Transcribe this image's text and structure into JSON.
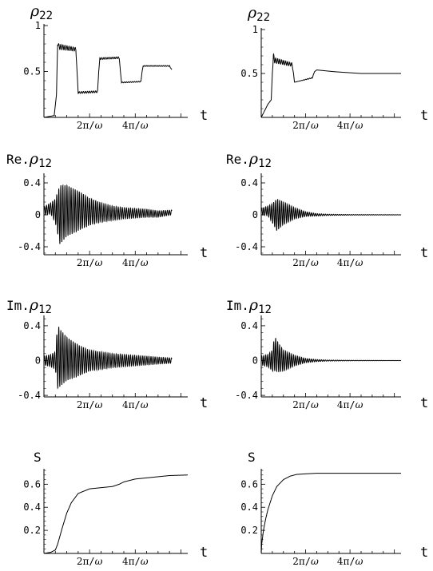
{
  "chart_data": [
    {
      "type": "line",
      "ylabel": "ρ22",
      "xlabel": "t",
      "x_tick_labels": [
        "2π/ω",
        "4π/ω"
      ],
      "x_ticks": [
        2,
        4
      ],
      "xlim": [
        0,
        6.3
      ],
      "y_tick_labels": [
        "1",
        "0.5"
      ],
      "y_ticks": [
        1,
        0.5
      ],
      "ylim": [
        0,
        1
      ],
      "series": [
        {
          "x": [
            0,
            0.45,
            0.55,
            0.6,
            0.65,
            1.4,
            1.45,
            1.5,
            2.35,
            2.4,
            2.45,
            3.3,
            3.35,
            3.4,
            4.25,
            4.3,
            4.35,
            5.5,
            5.6
          ],
          "y": [
            0,
            0.02,
            0.25,
            0.82,
            0.77,
            0.74,
            0.5,
            0.27,
            0.28,
            0.5,
            0.64,
            0.65,
            0.5,
            0.38,
            0.39,
            0.5,
            0.56,
            0.56,
            0.52
          ],
          "osc_amp": [
            0,
            0,
            0,
            0.03,
            0.03,
            0.02,
            0,
            0.01,
            0.01,
            0,
            0.01,
            0.01,
            0,
            0.005,
            0.005,
            0,
            0.005,
            0.005,
            0
          ]
        }
      ]
    },
    {
      "type": "line",
      "ylabel": "ρ22",
      "xlabel": "t",
      "x_tick_labels": [
        "2π/ω",
        "4π/ω"
      ],
      "x_ticks": [
        2,
        4
      ],
      "xlim": [
        0,
        6.3
      ],
      "y_tick_labels": [
        "1",
        "0.5"
      ],
      "y_ticks": [
        1,
        0.5
      ],
      "ylim": [
        0,
        1
      ],
      "series": [
        {
          "x": [
            0,
            0.3,
            0.45,
            0.5,
            0.55,
            0.6,
            1.4,
            1.5,
            2.3,
            2.4,
            2.5,
            3.3,
            4.5,
            6.3
          ],
          "y": [
            0,
            0.15,
            0.2,
            0.5,
            0.7,
            0.65,
            0.6,
            0.4,
            0.45,
            0.52,
            0.54,
            0.52,
            0.5,
            0.5
          ],
          "osc_amp": [
            0,
            0,
            0,
            0,
            0.03,
            0.03,
            0.02,
            0,
            0.005,
            0,
            0,
            0,
            0,
            0
          ]
        }
      ]
    },
    {
      "type": "line",
      "ylabel": "Re.ρ12",
      "xlabel": "t",
      "x_tick_labels": [
        "2π/ω",
        "4π/ω"
      ],
      "x_ticks": [
        2,
        4
      ],
      "xlim": [
        0,
        6.3
      ],
      "y_tick_labels": [
        "0.4",
        "0",
        "-0.4"
      ],
      "y_ticks": [
        0.4,
        0,
        -0.4
      ],
      "ylim": [
        -0.5,
        0.5
      ],
      "series": [
        {
          "x": [
            0,
            0.3,
            0.5,
            0.7,
            1.0,
            1.5,
            2.0,
            2.5,
            3.0,
            3.5,
            4.0,
            4.5,
            5.0,
            5.6
          ],
          "y": [
            0.05,
            0.08,
            0.05,
            0.0,
            0.05,
            0.05,
            0.04,
            0.03,
            0.02,
            0.02,
            0.02,
            0.02,
            0.01,
            0.03
          ],
          "osc_amp": [
            0.05,
            0.07,
            0.15,
            0.37,
            0.32,
            0.25,
            0.17,
            0.12,
            0.09,
            0.07,
            0.06,
            0.05,
            0.04,
            0.03
          ]
        }
      ]
    },
    {
      "type": "line",
      "ylabel": "Re.ρ12",
      "xlabel": "t",
      "x_tick_labels": [
        "2π/ω",
        "4π/ω"
      ],
      "x_ticks": [
        2,
        4
      ],
      "xlim": [
        0,
        6.3
      ],
      "y_tick_labels": [
        "0.4",
        "0",
        "-0.4"
      ],
      "y_ticks": [
        0.4,
        0,
        -0.4
      ],
      "ylim": [
        -0.5,
        0.5
      ],
      "series": [
        {
          "x": [
            0,
            0.3,
            0.5,
            0.7,
            1.0,
            1.5,
            2.0,
            2.5,
            3.0,
            4.0,
            6.3
          ],
          "y": [
            0.04,
            0.05,
            0.02,
            0.0,
            0.02,
            0.02,
            0.01,
            0.0,
            0.0,
            0.0,
            0.0
          ],
          "osc_amp": [
            0.04,
            0.06,
            0.12,
            0.2,
            0.14,
            0.07,
            0.03,
            0.015,
            0.008,
            0.004,
            0.002
          ]
        }
      ]
    },
    {
      "type": "line",
      "ylabel": "Im.ρ12",
      "xlabel": "t",
      "x_tick_labels": [
        "2π/ω",
        "4π/ω"
      ],
      "x_ticks": [
        2,
        4
      ],
      "xlim": [
        0,
        6.3
      ],
      "y_tick_labels": [
        "0.4",
        "0",
        "-0.4"
      ],
      "y_ticks": [
        0.4,
        0,
        -0.4
      ],
      "ylim": [
        -0.5,
        0.5
      ],
      "series": [
        {
          "x": [
            0,
            0.3,
            0.5,
            0.6,
            0.7,
            1.0,
            1.5,
            2.0,
            2.5,
            3.0,
            3.5,
            4.0,
            4.5,
            5.0,
            5.6
          ],
          "y": [
            0.0,
            0.0,
            0.0,
            0.05,
            0.03,
            0.02,
            0.0,
            0.0,
            0.0,
            0.0,
            0.0,
            0.0,
            0.0,
            0.0,
            0.0
          ],
          "osc_amp": [
            0.05,
            0.07,
            0.1,
            0.37,
            0.33,
            0.25,
            0.18,
            0.12,
            0.1,
            0.08,
            0.07,
            0.06,
            0.05,
            0.04,
            0.03
          ]
        }
      ]
    },
    {
      "type": "line",
      "ylabel": "Im.ρ12",
      "xlabel": "t",
      "x_tick_labels": [
        "2π/ω",
        "4π/ω"
      ],
      "x_ticks": [
        2,
        4
      ],
      "xlim": [
        0,
        6.3
      ],
      "y_tick_labels": [
        "0.4",
        "0",
        "-0.4"
      ],
      "y_ticks": [
        0.4,
        0,
        -0.4
      ],
      "ylim": [
        -0.5,
        0.5
      ],
      "series": [
        {
          "x": [
            0,
            0.3,
            0.5,
            0.6,
            0.8,
            1.0,
            1.5,
            2.0,
            2.5,
            3.0,
            4.0,
            6.3
          ],
          "y": [
            0.0,
            0.0,
            0.0,
            0.08,
            0.03,
            0.0,
            0.0,
            0.0,
            0.0,
            0.0,
            0.0,
            0.0
          ],
          "osc_amp": [
            0.05,
            0.07,
            0.12,
            0.2,
            0.16,
            0.12,
            0.06,
            0.025,
            0.012,
            0.006,
            0.003,
            0.001
          ]
        }
      ]
    },
    {
      "type": "line",
      "ylabel": "S",
      "xlabel": "t",
      "x_tick_labels": [
        "2π/ω",
        "4π/ω"
      ],
      "x_ticks": [
        2,
        4
      ],
      "xlim": [
        0,
        6.3
      ],
      "y_tick_labels": [
        "0.6",
        "0.4",
        "0.2"
      ],
      "y_ticks": [
        0.6,
        0.4,
        0.2
      ],
      "ylim": [
        0,
        0.72
      ],
      "series": [
        {
          "x": [
            0,
            0.3,
            0.5,
            0.6,
            0.7,
            0.8,
            1.0,
            1.2,
            1.5,
            2.0,
            2.5,
            3.0,
            3.3,
            3.5,
            4.0,
            4.5,
            5.0,
            5.5,
            6.3
          ],
          "y": [
            0.0,
            0.01,
            0.03,
            0.08,
            0.15,
            0.22,
            0.35,
            0.44,
            0.52,
            0.56,
            0.57,
            0.58,
            0.6,
            0.62,
            0.645,
            0.655,
            0.665,
            0.675,
            0.68
          ],
          "osc_amp": [
            0,
            0,
            0,
            0,
            0,
            0,
            0,
            0,
            0,
            0,
            0,
            0,
            0,
            0,
            0,
            0,
            0,
            0,
            0
          ]
        }
      ]
    },
    {
      "type": "line",
      "ylabel": "S",
      "xlabel": "t",
      "x_tick_labels": [
        "2π/ω",
        "4π/ω"
      ],
      "x_ticks": [
        2,
        4
      ],
      "xlim": [
        0,
        6.3
      ],
      "y_tick_labels": [
        "0.6",
        "0.4",
        "0.2"
      ],
      "y_ticks": [
        0.6,
        0.4,
        0.2
      ],
      "ylim": [
        0,
        0.72
      ],
      "series": [
        {
          "x": [
            0,
            0.02,
            0.1,
            0.2,
            0.3,
            0.5,
            0.7,
            1.0,
            1.3,
            1.6,
            2.0,
            2.5,
            3.0,
            4.0,
            6.3
          ],
          "y": [
            0.0,
            0.08,
            0.2,
            0.3,
            0.38,
            0.5,
            0.58,
            0.64,
            0.67,
            0.685,
            0.69,
            0.695,
            0.695,
            0.695,
            0.695
          ],
          "osc_amp": [
            0,
            0,
            0,
            0,
            0,
            0,
            0,
            0,
            0,
            0,
            0,
            0,
            0,
            0,
            0
          ]
        }
      ]
    }
  ]
}
